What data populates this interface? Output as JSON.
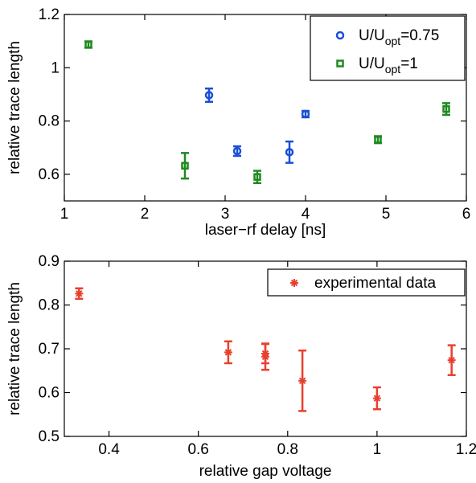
{
  "chart_data": [
    {
      "type": "scatter",
      "xlabel": "laser−rf delay [ns]",
      "ylabel": "relative trace length",
      "xlim": [
        1,
        6
      ],
      "ylim": [
        0.5,
        1.2
      ],
      "xticks": [
        "1",
        "2",
        "3",
        "4",
        "5",
        "6"
      ],
      "yticks": [
        "0.6",
        "0.8",
        "1",
        "1.2"
      ],
      "legend_position": "top-right",
      "series": [
        {
          "name": "U/U_opt=0.75",
          "legend_main": "U/U",
          "legend_sub": "opt",
          "legend_tail": "=0.75",
          "marker": "circle",
          "color": "#1a4fd6",
          "points": [
            {
              "x": 2.8,
              "y": 0.897,
              "err": 0.025
            },
            {
              "x": 3.15,
              "y": 0.687,
              "err": 0.018
            },
            {
              "x": 3.8,
              "y": 0.683,
              "err": 0.04
            },
            {
              "x": 4.0,
              "y": 0.826,
              "err": 0.012
            }
          ]
        },
        {
          "name": "U/U_opt=1",
          "legend_main": "U/U",
          "legend_sub": "opt",
          "legend_tail": "=1",
          "marker": "square",
          "color": "#1f8a1f",
          "points": [
            {
              "x": 1.3,
              "y": 1.087,
              "err": 0.012
            },
            {
              "x": 2.5,
              "y": 0.632,
              "err": 0.048
            },
            {
              "x": 3.4,
              "y": 0.59,
              "err": 0.023
            },
            {
              "x": 4.9,
              "y": 0.73,
              "err": 0.013
            },
            {
              "x": 5.75,
              "y": 0.845,
              "err": 0.022
            }
          ]
        }
      ]
    },
    {
      "type": "scatter",
      "xlabel": "relative gap voltage",
      "ylabel": "relative trace length",
      "xlim": [
        0.3,
        1.2
      ],
      "ylim": [
        0.5,
        0.9
      ],
      "xticks": [
        "0.4",
        "0.6",
        "0.8",
        "1",
        "1.2"
      ],
      "yticks": [
        "0.5",
        "0.6",
        "0.7",
        "0.8",
        "0.9"
      ],
      "legend_position": "top-right",
      "series": [
        {
          "name": "experimental data",
          "marker": "star",
          "color": "#e8402e",
          "points": [
            {
              "x": 0.333,
              "y": 0.826,
              "err": 0.012
            },
            {
              "x": 0.667,
              "y": 0.692,
              "err": 0.025
            },
            {
              "x": 0.75,
              "y": 0.689,
              "err": 0.022
            },
            {
              "x": 0.75,
              "y": 0.682,
              "err": 0.03
            },
            {
              "x": 0.833,
              "y": 0.627,
              "err": 0.069
            },
            {
              "x": 1.0,
              "y": 0.587,
              "err": 0.025
            },
            {
              "x": 1.167,
              "y": 0.674,
              "err": 0.034
            }
          ]
        }
      ]
    }
  ]
}
